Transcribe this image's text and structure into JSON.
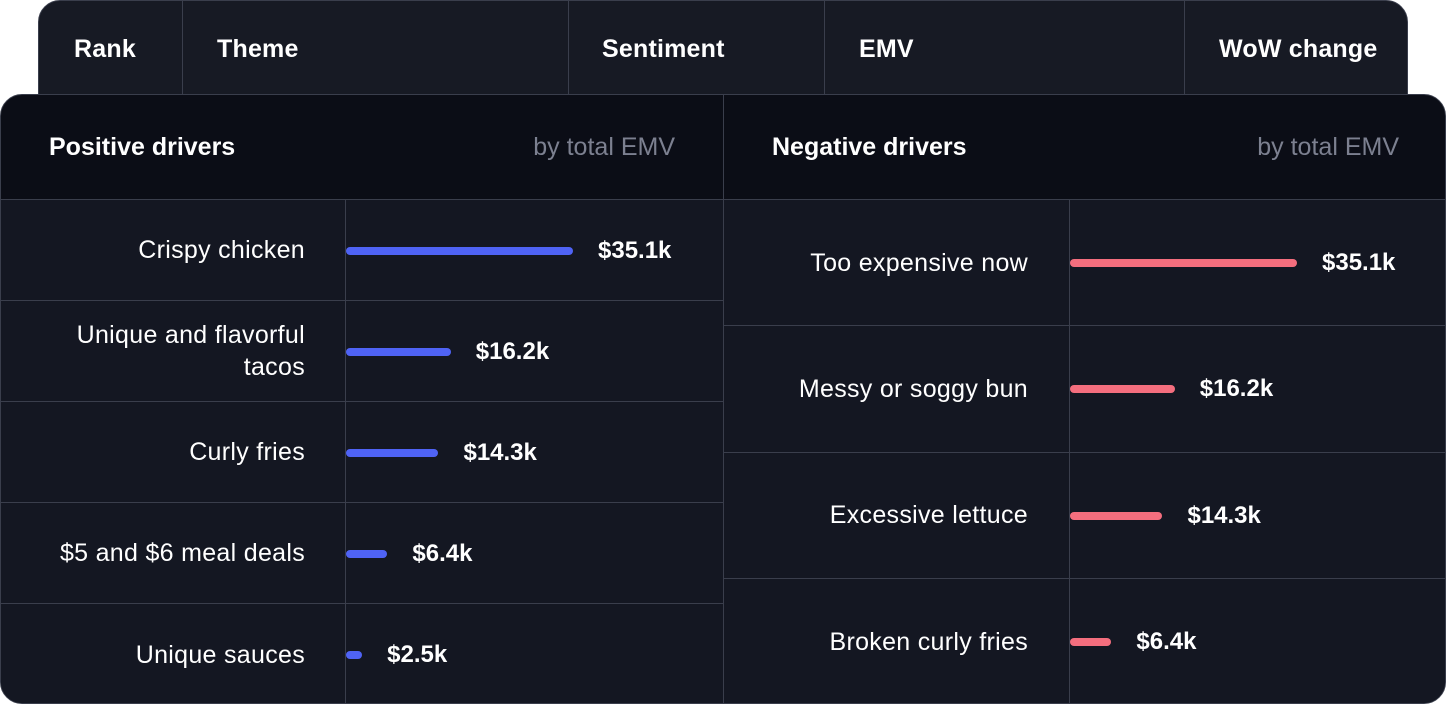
{
  "header": {
    "columns": [
      {
        "id": "rank",
        "label": "Rank"
      },
      {
        "id": "theme",
        "label": "Theme"
      },
      {
        "id": "sentiment",
        "label": "Sentiment"
      },
      {
        "id": "emv",
        "label": "EMV"
      },
      {
        "id": "wow",
        "label": "WoW change"
      }
    ]
  },
  "colors": {
    "positive_bar": "#4f63f5",
    "negative_bar": "#f46e7e"
  },
  "chart_data": [
    {
      "type": "bar",
      "orientation": "horizontal",
      "title": "Positive drivers",
      "subtitle": "by total EMV",
      "categories": [
        "Crispy chicken",
        "Unique and flavorful tacos",
        "Curly fries",
        "$5 and $6 meal deals",
        "Unique sauces"
      ],
      "values": [
        35.1,
        16.2,
        14.3,
        6.4,
        2.5
      ],
      "value_labels": [
        "$35.1k",
        "$16.2k",
        "$14.3k",
        "$6.4k",
        "$2.5k"
      ],
      "unit": "$k",
      "color": "#4f63f5"
    },
    {
      "type": "bar",
      "orientation": "horizontal",
      "title": "Negative drivers",
      "subtitle": "by total EMV",
      "categories": [
        "Too expensive now",
        "Messy or soggy bun",
        "Excessive lettuce",
        "Broken curly fries"
      ],
      "values": [
        35.1,
        16.2,
        14.3,
        6.4
      ],
      "value_labels": [
        "$35.1k",
        "$16.2k",
        "$14.3k",
        "$6.4k"
      ],
      "unit": "$k",
      "color": "#f46e7e"
    }
  ]
}
